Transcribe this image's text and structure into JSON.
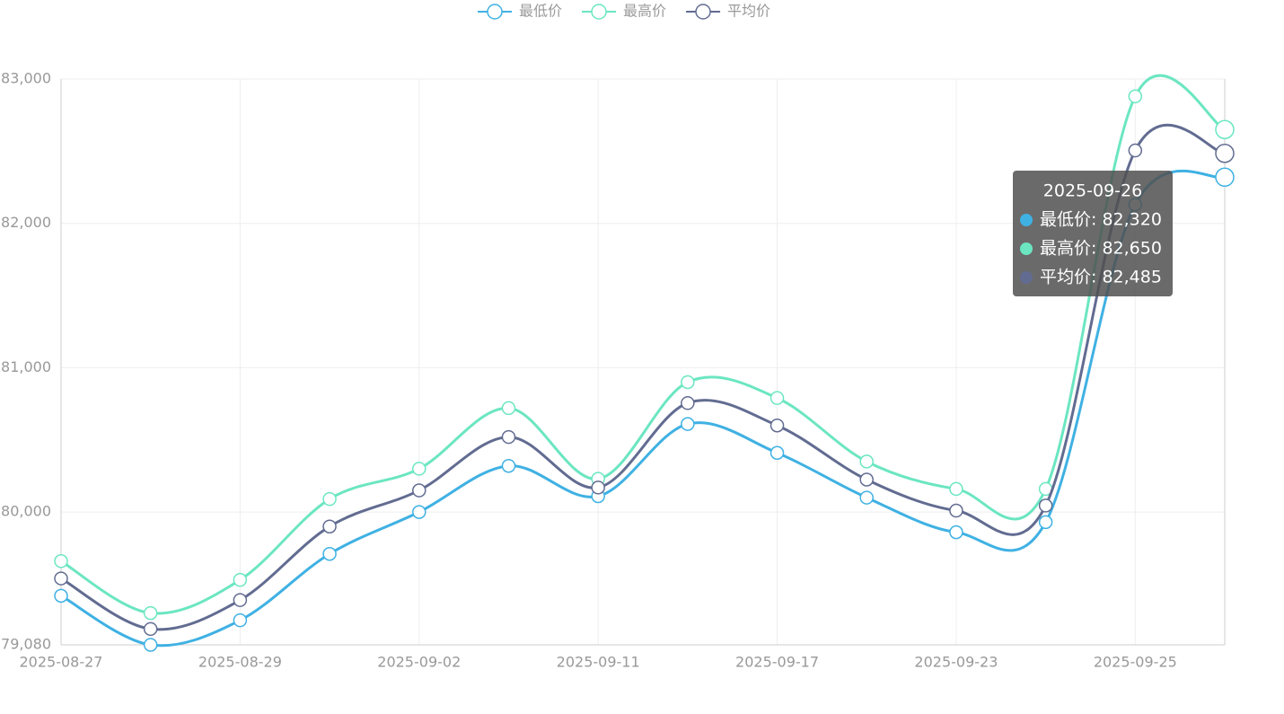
{
  "chart_data": {
    "type": "line",
    "smooth": true,
    "grid": true,
    "legend_position": "top",
    "categories": [
      "2025-08-27",
      null,
      "2025-08-29",
      null,
      "2025-09-02",
      null,
      "2025-09-11",
      null,
      "2025-09-17",
      null,
      "2025-09-23",
      null,
      "2025-09-25",
      null
    ],
    "series": [
      {
        "name": "最低价",
        "color": "#3fb1e3",
        "values": [
          79420,
          79080,
          79250,
          79710,
          80000,
          80320,
          80110,
          80610,
          80410,
          80100,
          79860,
          79930,
          82130,
          82320
        ]
      },
      {
        "name": "最高价",
        "color": "#6be6c1",
        "values": [
          79660,
          79300,
          79530,
          80090,
          80300,
          80720,
          80230,
          80900,
          80790,
          80350,
          80160,
          80160,
          82880,
          82650
        ]
      },
      {
        "name": "平均价",
        "color": "#626c91",
        "values": [
          79540,
          79190,
          79390,
          79900,
          80150,
          80520,
          80170,
          80755,
          80600,
          80225,
          80010,
          80045,
          82505,
          82485
        ]
      }
    ],
    "ylim": [
      79080,
      83000
    ],
    "yticks": [
      {
        "value": 79080,
        "label": "79,080"
      },
      {
        "value": 80000,
        "label": "80,000"
      },
      {
        "value": 81000,
        "label": "81,000"
      },
      {
        "value": 82000,
        "label": "82,000"
      },
      {
        "value": 83000,
        "label": "83,000"
      }
    ],
    "tooltip": {
      "title": "2025-09-26",
      "rows": [
        "最低价: 82,320",
        "最高价: 82,650",
        "平均价: 82,485"
      ]
    }
  }
}
